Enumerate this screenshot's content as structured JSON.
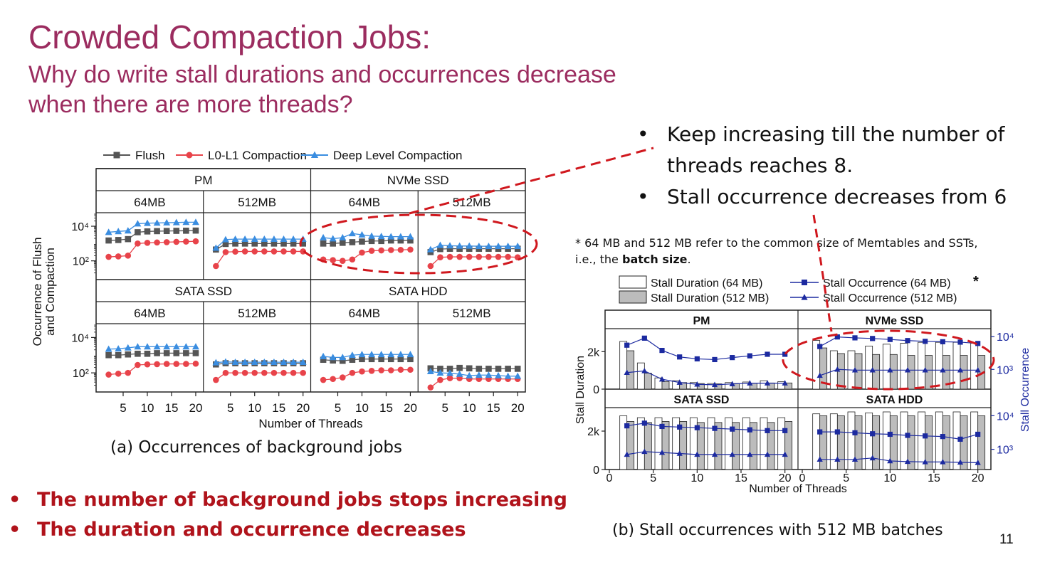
{
  "slide": {
    "title": "Crowded Compaction Jobs:",
    "subtitle": "Why do write stall durations and occurrences decrease when there are more threads?",
    "right_bullets": [
      "Keep increasing till the number of",
      "threads reaches 8.",
      "Stall occurrence decreases from 6"
    ],
    "note": {
      "line1": "* 64 MB and 512 MB refer to the common size of Memtables and SSTs,",
      "line2_prefix": "i.e., the ",
      "line2_bold": "batch size",
      "line2_suffix": "."
    },
    "caption_a": "(a) Occurrences of background jobs",
    "caption_b": "(b) Stall occurrences with 512 MB batches",
    "bottom_bullets": [
      "The number of background jobs stops increasing",
      "The duration and occurrence decreases"
    ],
    "page_number": "11",
    "asterisk": "*",
    "bullet_char": "•",
    "colors": {
      "title": "#9b2c5f",
      "emphasis": "#b0131b",
      "flush": "#555555",
      "l0l1": "#e8434a",
      "deep": "#3a8de0",
      "occurrence": "#1c2aa0",
      "annotation": "#d0181e"
    }
  },
  "chart_data": [
    {
      "type": "line",
      "name": "a",
      "legend": [
        "Flush",
        "L0-L1 Compaction",
        "Deep Level Compaction"
      ],
      "ylabel": "Occurrence of Flush and Compaction",
      "xlabel": "Number of Threads",
      "yscale": "log",
      "ylim": [
        10,
        50000
      ],
      "yticks": [
        "10⁴",
        "10²"
      ],
      "xlim": [
        0,
        21
      ],
      "xticks": [
        5,
        10,
        15,
        20
      ],
      "x": [
        2,
        4,
        6,
        8,
        10,
        12,
        14,
        16,
        18,
        20
      ],
      "groups": [
        "PM",
        "NVMe SSD",
        "SATA SSD",
        "SATA HDD"
      ],
      "batches": [
        "64MB",
        "512MB"
      ],
      "panels": [
        {
          "group": "PM",
          "batch": "64MB",
          "flush": [
            1500,
            1600,
            1800,
            4500,
            5000,
            5200,
            5300,
            5400,
            5500,
            5600
          ],
          "l0l1": [
            170,
            180,
            200,
            1000,
            1100,
            1150,
            1200,
            1250,
            1300,
            1350
          ],
          "deep": [
            4500,
            5000,
            5500,
            14000,
            15000,
            15500,
            16000,
            16500,
            17000,
            17000
          ]
        },
        {
          "group": "PM",
          "batch": "512MB",
          "flush": [
            450,
            950,
            1000,
            1000,
            1000,
            1000,
            1000,
            1000,
            1000,
            1000
          ],
          "l0l1": [
            50,
            320,
            340,
            350,
            350,
            350,
            350,
            350,
            350,
            350
          ],
          "deep": [
            550,
            1700,
            1800,
            1800,
            1800,
            1800,
            1800,
            1800,
            1800,
            1800
          ]
        },
        {
          "group": "NVMe SSD",
          "batch": "64MB",
          "flush": [
            1000,
            1000,
            1100,
            1200,
            1300,
            1400,
            1400,
            1500,
            1500,
            1500
          ],
          "l0l1": [
            120,
            110,
            100,
            120,
            300,
            380,
            400,
            420,
            430,
            450
          ],
          "deep": [
            2200,
            1900,
            2200,
            3800,
            3200,
            2700,
            2600,
            2500,
            2500,
            2500
          ]
        },
        {
          "group": "NVMe SSD",
          "batch": "512MB",
          "flush": [
            320,
            480,
            500,
            500,
            500,
            500,
            500,
            500,
            500,
            500
          ],
          "l0l1": [
            50,
            160,
            170,
            170,
            170,
            170,
            170,
            170,
            170,
            160
          ],
          "deep": [
            450,
            800,
            750,
            720,
            720,
            700,
            700,
            700,
            700,
            700
          ]
        },
        {
          "group": "SATA SSD",
          "batch": "64MB",
          "flush": [
            1000,
            1000,
            1100,
            1200,
            1200,
            1300,
            1300,
            1300,
            1300,
            1300
          ],
          "l0l1": [
            80,
            90,
            100,
            280,
            300,
            310,
            320,
            320,
            320,
            330
          ],
          "deep": [
            2200,
            2300,
            2600,
            3000,
            3000,
            3000,
            3000,
            3000,
            3000,
            3000
          ]
        },
        {
          "group": "SATA SSD",
          "batch": "512MB",
          "flush": [
            300,
            350,
            350,
            350,
            350,
            350,
            350,
            350,
            350,
            350
          ],
          "l0l1": [
            40,
            100,
            100,
            100,
            100,
            100,
            100,
            100,
            100,
            100
          ],
          "deep": [
            380,
            420,
            400,
            400,
            400,
            400,
            400,
            400,
            400,
            400
          ]
        },
        {
          "group": "SATA HDD",
          "batch": "64MB",
          "flush": [
            550,
            500,
            480,
            550,
            600,
            600,
            600,
            600,
            600,
            600
          ],
          "l0l1": [
            40,
            45,
            55,
            100,
            120,
            130,
            140,
            140,
            150,
            150
          ],
          "deep": [
            850,
            750,
            750,
            1000,
            1100,
            1100,
            1100,
            1100,
            1100,
            1100
          ]
        },
        {
          "group": "SATA HDD",
          "batch": "512MB",
          "flush": [
            180,
            170,
            170,
            190,
            180,
            170,
            170,
            170,
            170,
            170
          ],
          "l0l1": [
            15,
            40,
            50,
            50,
            45,
            45,
            45,
            45,
            45,
            45
          ],
          "deep": [
            120,
            100,
            95,
            85,
            70,
            75,
            75,
            70,
            65,
            65
          ]
        }
      ]
    },
    {
      "type": "bar",
      "name": "b",
      "legend": [
        "Stall Duration (64 MB)",
        "Stall Duration (512 MB)",
        "Stall Occurrence (64 MB)",
        "Stall Occurrence (512 MB)"
      ],
      "ylabel": "Stall Duration",
      "y2label": "Stall Occurrence",
      "xlabel": "Number of Threads",
      "ylim": [
        0,
        3000
      ],
      "yticks": [
        "0",
        "2k"
      ],
      "y2scale": "log",
      "y2lim": [
        250,
        13000
      ],
      "y2ticks": [
        "10⁴",
        "10³"
      ],
      "xlim": [
        0,
        21
      ],
      "xticks": [
        0,
        5,
        10,
        15,
        20
      ],
      "x": [
        2,
        4,
        6,
        8,
        10,
        12,
        14,
        16,
        18,
        20
      ],
      "panels": [
        {
          "group": "PM",
          "dur64": [
            2550,
            1400,
            600,
            450,
            350,
            300,
            350,
            380,
            450,
            400
          ],
          "dur512": [
            2050,
            850,
            400,
            350,
            300,
            280,
            300,
            320,
            330,
            330
          ],
          "occ64": [
            5500,
            9000,
            3800,
            2400,
            2100,
            2000,
            2300,
            2600,
            2900,
            2900
          ],
          "occ512": [
            800,
            900,
            500,
            400,
            350,
            340,
            360,
            380,
            380,
            380
          ]
        },
        {
          "group": "NVMe SSD",
          "dur64": [
            2600,
            2050,
            2050,
            2300,
            2400,
            2450,
            2500,
            2500,
            2500,
            2450
          ],
          "dur512": [
            2200,
            1900,
            1900,
            1850,
            1850,
            1800,
            1800,
            1800,
            1800,
            1800
          ],
          "occ64": [
            5000,
            9800,
            9200,
            8800,
            8200,
            7600,
            7200,
            7000,
            6800,
            6200
          ],
          "occ512": [
            650,
            1000,
            950,
            950,
            950,
            950,
            950,
            950,
            950,
            950
          ]
        },
        {
          "group": "SATA SSD",
          "dur64": [
            2800,
            2700,
            2700,
            2700,
            2700,
            2700,
            2700,
            2700,
            2700,
            2700
          ],
          "dur512": [
            2500,
            2450,
            2500,
            2500,
            2450,
            2450,
            2450,
            2450,
            2450,
            2500
          ],
          "occ64": [
            5000,
            6000,
            4800,
            4600,
            4400,
            4200,
            4000,
            3800,
            3600,
            3600
          ],
          "occ512": [
            700,
            850,
            800,
            750,
            700,
            700,
            700,
            700,
            700,
            700
          ]
        },
        {
          "group": "SATA HDD",
          "dur64": [
            2900,
            2900,
            3000,
            2950,
            3000,
            3000,
            3000,
            3000,
            3000,
            3000
          ],
          "dur512": [
            2800,
            2800,
            2800,
            2800,
            2800,
            2800,
            2800,
            2800,
            2800,
            2800
          ],
          "occ64": [
            3300,
            3300,
            3100,
            2900,
            2800,
            2600,
            2500,
            2400,
            2000,
            2800
          ],
          "occ512": [
            500,
            500,
            500,
            550,
            450,
            430,
            420,
            420,
            410,
            400
          ]
        }
      ]
    }
  ]
}
